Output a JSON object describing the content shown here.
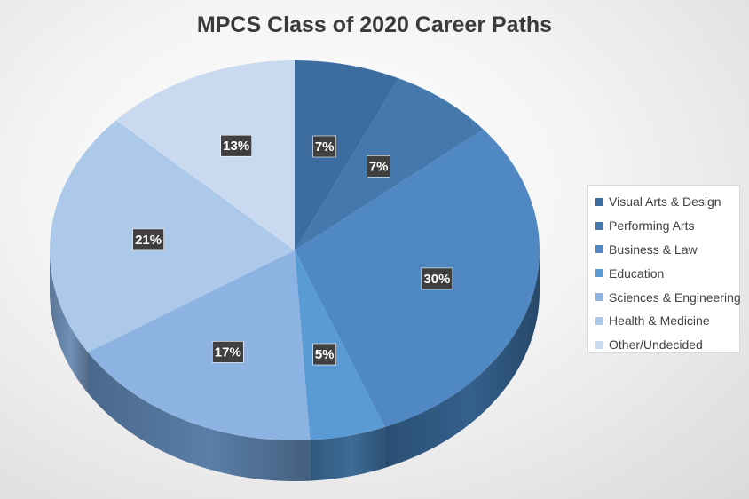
{
  "chart_data": {
    "type": "pie",
    "title": "MPCS Class of 2020 Career Paths",
    "legend_position": "right",
    "categories": [
      "Visual Arts & Design",
      "Performing Arts",
      "Business & Law",
      "Education",
      "Sciences & Engineering",
      "Health & Medicine",
      "Other/Undecided"
    ],
    "values": [
      7,
      7,
      30,
      5,
      17,
      21,
      13
    ],
    "labels": [
      "7%",
      "7%",
      "30%",
      "5%",
      "17%",
      "21%",
      "13%"
    ],
    "colors": [
      "#3d6d9e",
      "#4578ac",
      "#4f88c2",
      "#5b9bd5",
      "#8db3e2",
      "#adc9ea",
      "#c9daf0"
    ],
    "side_colors": [
      "#2a4e72",
      "#2f577f",
      "#34608c",
      "#3d6c98",
      "#5a7ea8",
      "#6f8fb6",
      "#8ea6c4"
    ]
  }
}
